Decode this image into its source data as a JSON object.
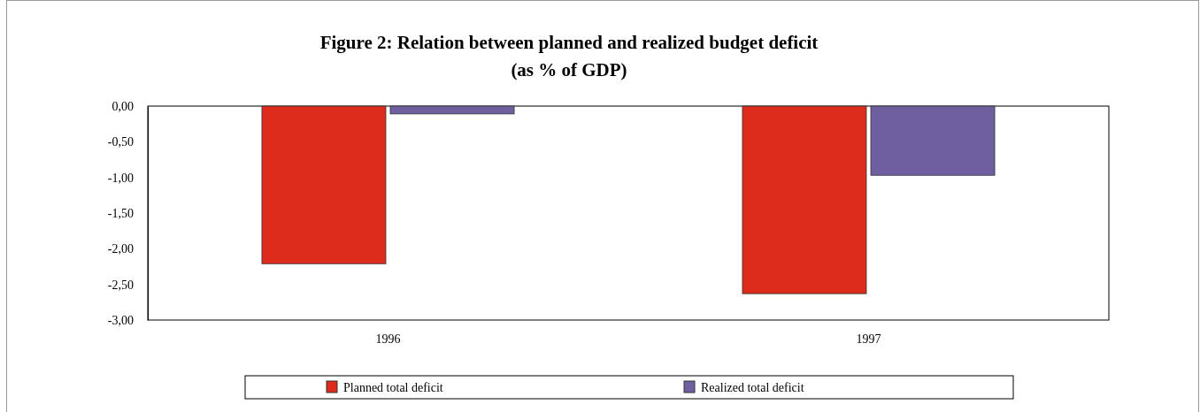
{
  "chart_data": {
    "type": "bar",
    "title": "Figure 2: Relation between planned and realized budget deficit",
    "subtitle": "(as % of   GDP)",
    "categories": [
      "1996",
      "1997"
    ],
    "series": [
      {
        "name": "Planned total deficit",
        "color": "#dd2c1c",
        "values": [
          -2.21,
          -2.63
        ]
      },
      {
        "name": "Realized total deficit",
        "color": "#6f5fa0",
        "values": [
          -0.11,
          -0.97
        ]
      }
    ],
    "ylim": [
      -3,
      0
    ],
    "yticks": [
      {
        "value": 0,
        "label": "0,00"
      },
      {
        "value": -0.5,
        "label": "-0,50"
      },
      {
        "value": -1,
        "label": "-1,00"
      },
      {
        "value": -1.5,
        "label": "-1,50"
      },
      {
        "value": -2,
        "label": "-2,00"
      },
      {
        "value": -2.5,
        "label": "-2,50"
      },
      {
        "value": -3,
        "label": "-3,00"
      }
    ],
    "grid": false,
    "legend": "bottom"
  }
}
